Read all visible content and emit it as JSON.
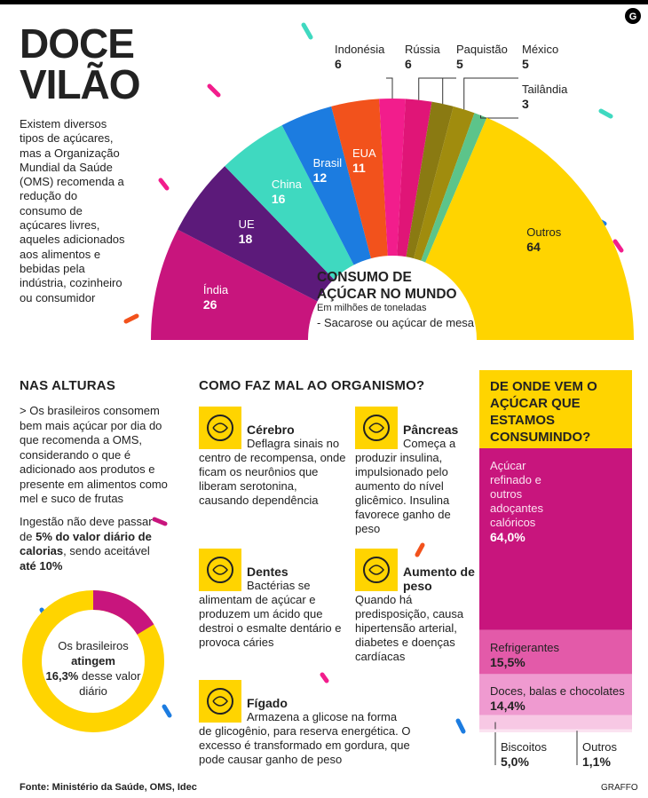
{
  "logo": "G",
  "header": {
    "title": "DOCE VILÃO",
    "intro": "Existem diversos tipos de açúcares, mas a Organização Mundial da Saúde (OMS) recomenda a redução do consumo de açúcares livres, aqueles adicionados aos alimentos e bebidas pela indústria, cozinheiro ou consumidor"
  },
  "chart_data": [
    {
      "type": "semi_donut",
      "title": "CONSUMO DE AÇÚCAR NO MUNDO",
      "subtitle": "Em milhões de toneladas",
      "note": "- Sacarose ou açúcar de mesa",
      "categories": [
        "Índia",
        "UE",
        "China",
        "Brasil",
        "EUA",
        "Indonésia",
        "Rússia",
        "Paquistão",
        "México",
        "Tailândia",
        "Outros"
      ],
      "values": [
        26,
        18,
        16,
        12,
        11,
        6,
        6,
        5,
        5,
        3,
        64
      ],
      "colors": [
        "#c8157d",
        "#5c1a7a",
        "#3fd9c0",
        "#1c7ce0",
        "#f2521c",
        "#f21d8c",
        "#e01577",
        "#8a7a12",
        "#a08c0e",
        "#5cc48a",
        "#ffd400"
      ]
    },
    {
      "type": "donut",
      "label_top": "Os brasileiros",
      "label_verb": "atingem",
      "label_end": "desse valor diário",
      "values": [
        16.3
      ],
      "value_labels": [
        "16,3%"
      ],
      "colors": [
        "#c8157d",
        "#ffd400"
      ]
    },
    {
      "type": "stacked_column",
      "title": "DE ONDE VEM O AÇÚCAR QUE ESTAMOS CONSUMINDO?",
      "series": [
        {
          "name": "Açúcar refinado e outros adoçantes calóricos",
          "color": "#c8157d",
          "values": [
            64.0
          ],
          "value_labels": [
            "64,0%"
          ]
        },
        {
          "name": "Refrigerantes",
          "color": "#e35aa9",
          "values": [
            15.5
          ],
          "value_labels": [
            "15,5%"
          ]
        },
        {
          "name": "Doces, balas e chocolates",
          "color": "#ef9ad0",
          "values": [
            14.4
          ],
          "value_labels": [
            "14,4%"
          ]
        },
        {
          "name": "Biscoitos",
          "color": "#f7c8e4",
          "values": [
            5.0
          ],
          "value_labels": [
            "5,0%"
          ]
        },
        {
          "name": "Outros",
          "color": "#fbe3f1",
          "values": [
            1.1
          ],
          "value_labels": [
            "1,1%"
          ]
        }
      ]
    }
  ],
  "nas_alturas": {
    "title": "NAS ALTURAS",
    "text": "> Os brasileiros consomem bem mais açúcar por dia do que recomenda a OMS, considerando o que é adicionado aos produtos e presente em alimentos como mel e suco de frutas",
    "limit": [
      "Ingestão não deve passar de",
      "5% do valor diário de calorias",
      ", sendo aceitável",
      "até 10%"
    ]
  },
  "organismo": {
    "title": "COMO FAZ MAL AO ORGANISMO?",
    "items": [
      {
        "title": "Cérebro",
        "text": "Deflagra sinais no centro de recompensa, onde ficam os neurônios que liberam serotonina, causando dependência"
      },
      {
        "title": "Pâncreas",
        "text": "Começa a produzir insulina, impulsionado pelo aumento do nível glicêmico. Insulina favorece ganho de peso"
      },
      {
        "title": "Dentes",
        "text": "Bactérias se alimentam de açúcar e produzem um ácido que destroi o esmalte dentário e provoca cáries"
      },
      {
        "title": "Aumento de peso",
        "text": "Quando há predisposição, causa hipertensão arterial, diabetes e doenças cardíacas"
      },
      {
        "title": "Fígado",
        "text": "Armazena a glicose na forma de glicogênio, para reserva energética. O excesso é transformado em gordura, que pode causar ganho de peso"
      }
    ]
  },
  "footer": {
    "source": "Fonte: Ministério da Saúde, OMS, Idec",
    "credit": "GRAFFO"
  }
}
